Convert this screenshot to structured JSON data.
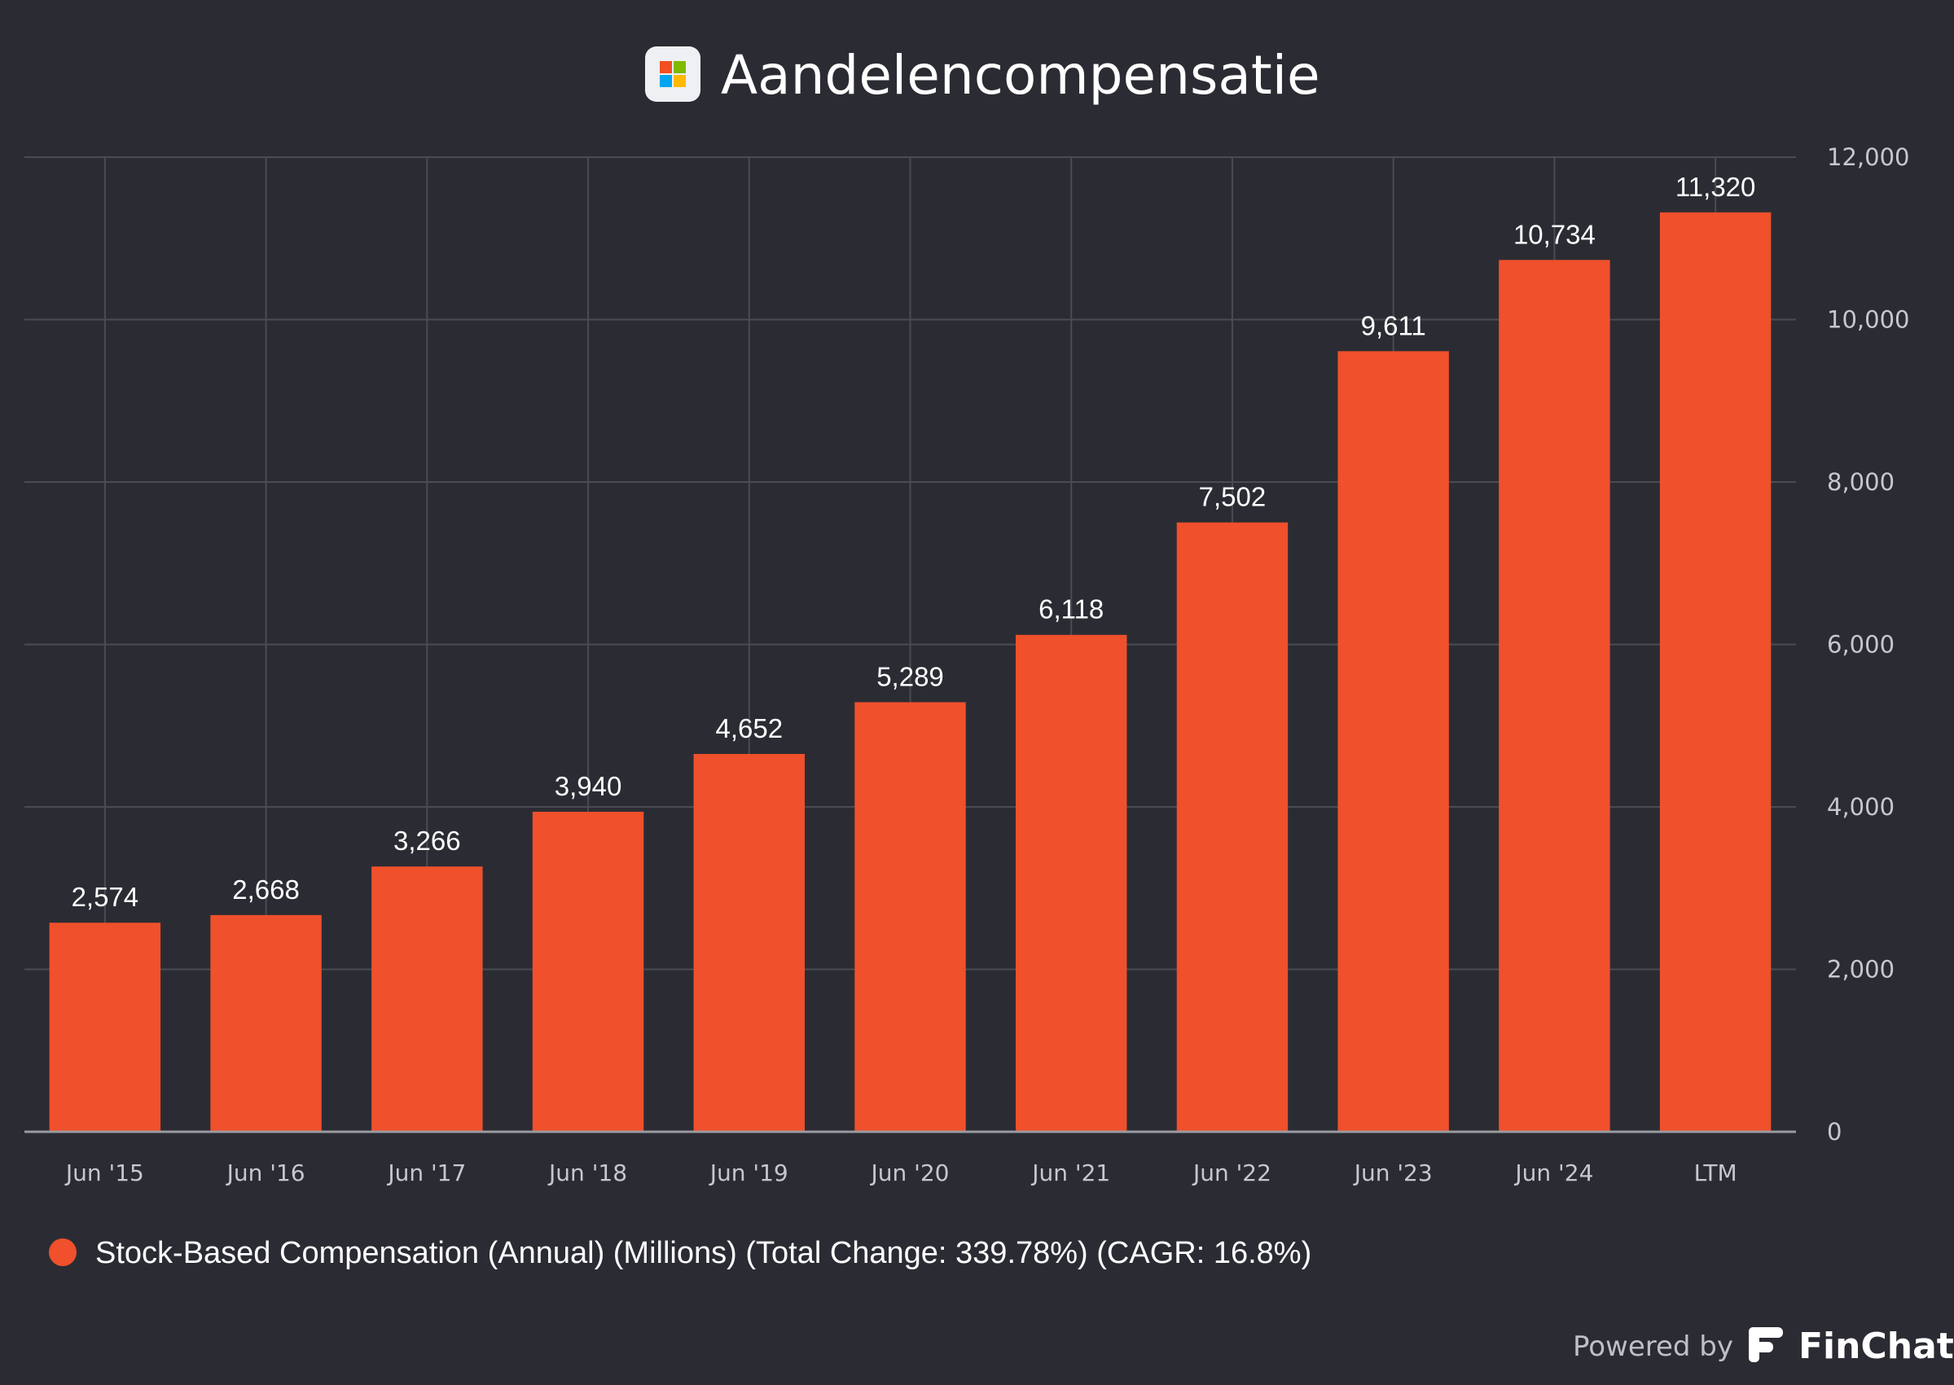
{
  "header": {
    "title": "Aandelencompensatie",
    "logo_icon": "microsoft-logo-icon"
  },
  "chart_data": {
    "type": "bar",
    "title": "Aandelencompensatie",
    "categories": [
      "Jun '15",
      "Jun '16",
      "Jun '17",
      "Jun '18",
      "Jun '19",
      "Jun '20",
      "Jun '21",
      "Jun '22",
      "Jun '23",
      "Jun '24",
      "LTM"
    ],
    "series": [
      {
        "name": "Stock-Based Compensation (Annual) (Millions) (Total Change: 339.78%) (CAGR: 16.8%)",
        "color": "#f0502c",
        "values": [
          2574,
          2668,
          3266,
          3940,
          4652,
          5289,
          6118,
          7502,
          9611,
          10734,
          11320
        ],
        "labels": [
          "2,574",
          "2,668",
          "3,266",
          "3,940",
          "4,652",
          "5,289",
          "6,118",
          "7,502",
          "9,611",
          "10,734",
          "11,320"
        ]
      }
    ],
    "ylim": [
      0,
      12000
    ],
    "yticks": [
      0,
      2000,
      4000,
      6000,
      8000,
      10000,
      12000
    ],
    "ytick_labels": [
      "0",
      "2,000",
      "4,000",
      "6,000",
      "8,000",
      "10,000",
      "12,000"
    ],
    "y_axis_side": "right",
    "grid": true,
    "legend_position": "bottom-left",
    "xlabel": "",
    "ylabel": ""
  },
  "legend": {
    "label": "Stock-Based Compensation (Annual) (Millions) (Total Change: 339.78%) (CAGR: 16.8%)"
  },
  "footer": {
    "powered_by": "Powered by",
    "brand": "FinChat",
    "brand_icon": "finchat-logo-icon"
  },
  "colors": {
    "background": "#2b2c33",
    "bar": "#f0502c",
    "grid": "#4a4b53",
    "axis": "#9a9ba1"
  }
}
